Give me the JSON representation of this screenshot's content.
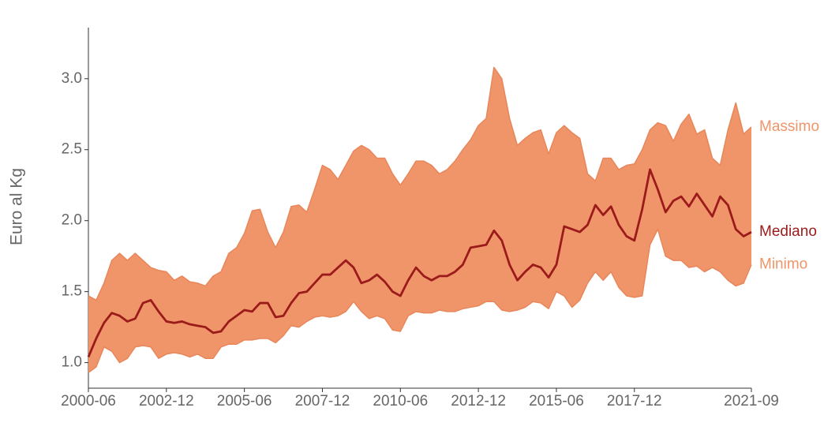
{
  "chart_data": {
    "type": "range",
    "y_label": "Euro al Kg",
    "x": [
      "2000-06",
      "2000-09",
      "2000-12",
      "2001-03",
      "2001-06",
      "2001-09",
      "2001-12",
      "2002-03",
      "2002-06",
      "2002-09",
      "2002-12",
      "2003-03",
      "2003-06",
      "2003-09",
      "2003-12",
      "2004-03",
      "2004-06",
      "2004-09",
      "2004-12",
      "2005-03",
      "2005-06",
      "2005-09",
      "2005-12",
      "2006-03",
      "2006-06",
      "2006-09",
      "2006-12",
      "2007-03",
      "2007-06",
      "2007-09",
      "2007-12",
      "2008-03",
      "2008-06",
      "2008-09",
      "2008-12",
      "2009-03",
      "2009-06",
      "2009-09",
      "2009-12",
      "2010-03",
      "2010-06",
      "2010-09",
      "2010-12",
      "2011-03",
      "2011-06",
      "2011-09",
      "2011-12",
      "2012-03",
      "2012-06",
      "2012-09",
      "2012-12",
      "2013-03",
      "2013-06",
      "2013-09",
      "2013-12",
      "2014-03",
      "2014-06",
      "2014-09",
      "2014-12",
      "2015-03",
      "2015-06",
      "2015-09",
      "2015-12",
      "2016-03",
      "2016-06",
      "2016-09",
      "2016-12",
      "2017-03",
      "2017-06",
      "2017-09",
      "2017-12",
      "2018-03",
      "2018-06",
      "2018-09",
      "2018-12",
      "2019-03",
      "2019-06",
      "2019-09",
      "2019-12",
      "2020-03",
      "2020-06",
      "2020-09",
      "2020-12",
      "2021-03",
      "2021-06",
      "2021-09"
    ],
    "series": [
      {
        "name": "Massimo",
        "color": "#f0956a",
        "values": [
          1.47,
          1.44,
          1.56,
          1.72,
          1.77,
          1.72,
          1.77,
          1.72,
          1.67,
          1.65,
          1.64,
          1.58,
          1.61,
          1.57,
          1.56,
          1.54,
          1.61,
          1.64,
          1.77,
          1.81,
          1.91,
          2.07,
          2.08,
          1.92,
          1.81,
          1.92,
          2.1,
          2.11,
          2.06,
          2.22,
          2.39,
          2.36,
          2.29,
          2.39,
          2.49,
          2.53,
          2.5,
          2.44,
          2.44,
          2.33,
          2.25,
          2.33,
          2.42,
          2.42,
          2.39,
          2.33,
          2.36,
          2.42,
          2.5,
          2.57,
          2.67,
          2.72,
          3.08,
          3.0,
          2.72,
          2.53,
          2.58,
          2.62,
          2.64,
          2.47,
          2.62,
          2.67,
          2.62,
          2.58,
          2.33,
          2.28,
          2.44,
          2.44,
          2.36,
          2.39,
          2.4,
          2.5,
          2.64,
          2.69,
          2.67,
          2.56,
          2.68,
          2.75,
          2.61,
          2.64,
          2.44,
          2.39,
          2.64,
          2.83,
          2.61,
          2.66
        ]
      },
      {
        "name": "Mediano",
        "color": "#9b1b1b",
        "values": [
          1.04,
          1.17,
          1.28,
          1.35,
          1.33,
          1.29,
          1.31,
          1.42,
          1.44,
          1.36,
          1.29,
          1.28,
          1.29,
          1.27,
          1.26,
          1.25,
          1.21,
          1.22,
          1.29,
          1.33,
          1.37,
          1.36,
          1.42,
          1.42,
          1.32,
          1.33,
          1.42,
          1.49,
          1.5,
          1.56,
          1.62,
          1.62,
          1.67,
          1.72,
          1.67,
          1.56,
          1.58,
          1.62,
          1.57,
          1.5,
          1.47,
          1.58,
          1.67,
          1.61,
          1.58,
          1.61,
          1.61,
          1.64,
          1.69,
          1.81,
          1.82,
          1.83,
          1.93,
          1.86,
          1.69,
          1.58,
          1.64,
          1.69,
          1.67,
          1.6,
          1.69,
          1.96,
          1.94,
          1.92,
          1.97,
          2.11,
          2.04,
          2.1,
          1.97,
          1.89,
          1.86,
          2.08,
          2.36,
          2.22,
          2.06,
          2.14,
          2.17,
          2.1,
          2.19,
          2.11,
          2.03,
          2.17,
          2.11,
          1.94,
          1.89,
          1.92
        ]
      },
      {
        "name": "Minimo",
        "color": "#f0956a",
        "values": [
          0.93,
          0.97,
          1.11,
          1.08,
          1.0,
          1.03,
          1.11,
          1.12,
          1.11,
          1.03,
          1.06,
          1.07,
          1.06,
          1.04,
          1.06,
          1.03,
          1.03,
          1.11,
          1.13,
          1.13,
          1.16,
          1.16,
          1.17,
          1.17,
          1.14,
          1.19,
          1.26,
          1.25,
          1.29,
          1.32,
          1.33,
          1.32,
          1.33,
          1.36,
          1.43,
          1.36,
          1.31,
          1.33,
          1.31,
          1.23,
          1.22,
          1.33,
          1.36,
          1.35,
          1.35,
          1.37,
          1.36,
          1.36,
          1.38,
          1.39,
          1.4,
          1.43,
          1.43,
          1.37,
          1.36,
          1.37,
          1.39,
          1.43,
          1.42,
          1.38,
          1.5,
          1.47,
          1.39,
          1.44,
          1.56,
          1.64,
          1.58,
          1.64,
          1.53,
          1.47,
          1.46,
          1.47,
          1.83,
          1.94,
          1.75,
          1.72,
          1.72,
          1.67,
          1.68,
          1.64,
          1.67,
          1.64,
          1.58,
          1.54,
          1.56,
          1.69
        ]
      }
    ],
    "xlim": [
      "2000-06",
      "2021-09"
    ],
    "xticks": [
      "2000-06",
      "2002-12",
      "2005-06",
      "2007-12",
      "2010-06",
      "2012-12",
      "2015-06",
      "2017-12",
      "2021-09"
    ],
    "ylim": [
      0.82,
      3.36
    ],
    "yticks": [
      {
        "value": 1,
        "label": "1.0"
      },
      1.5,
      {
        "value": 2,
        "label": "2.0"
      },
      2.5,
      {
        "value": 3,
        "label": "3.0"
      }
    ]
  }
}
